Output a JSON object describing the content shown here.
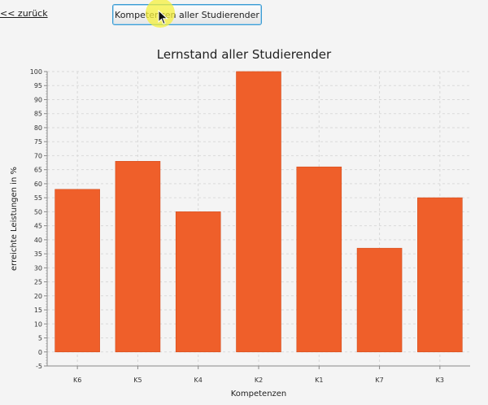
{
  "nav": {
    "back_label": "<< zurück"
  },
  "toolbar": {
    "button_label": "Kompetenzen aller Studierender"
  },
  "colors": {
    "bar": "#ef5f2a",
    "grid": "#d9d9d9",
    "plot_background": "#f4f4f4"
  },
  "chart_data": {
    "type": "bar",
    "title": "Lernstand aller Studierender",
    "xlabel": "Kompetenzen",
    "ylabel": "erreichte Leistungen in %",
    "categories": [
      "K6",
      "K5",
      "K4",
      "K2",
      "K1",
      "K7",
      "K3"
    ],
    "values": [
      58,
      68,
      50,
      100,
      66,
      37,
      55
    ],
    "ylim": [
      -5,
      100
    ],
    "ytick_step": 5,
    "grid": true,
    "legend": "none"
  }
}
